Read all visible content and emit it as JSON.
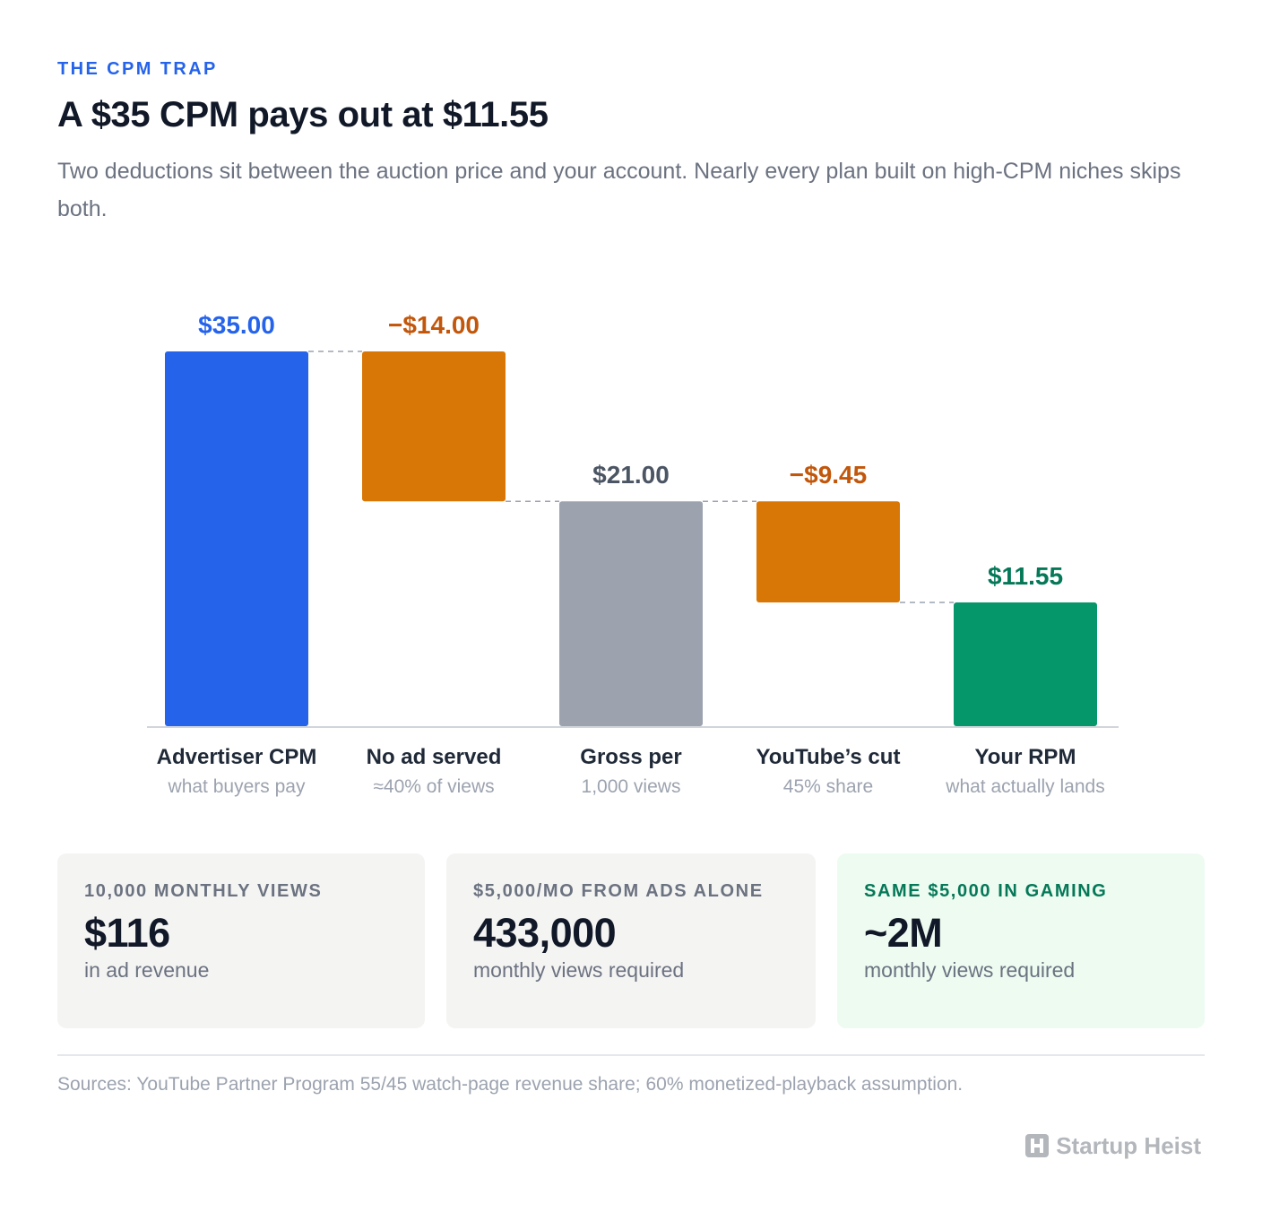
{
  "header": {
    "eyebrow": "THE CPM TRAP",
    "title": "A $35 CPM pays out at $11.55",
    "subtitle": "Two deductions sit between the auction price and your account. Nearly every plan built on high-CPM niches skips both."
  },
  "colors": {
    "accent": "#2563eb",
    "deduction": "#d97706",
    "deduction_label": "#c2570c",
    "gross": "#9ca3af",
    "gross_label": "#4b5563",
    "result": "#059669",
    "result_label": "#047857"
  },
  "chart_data": {
    "type": "bar",
    "subtype": "waterfall",
    "ylim": [
      0,
      35
    ],
    "grid": false,
    "bars": [
      {
        "label": "Advertiser CPM",
        "sublabel": "what buyers pay",
        "start": 0,
        "end": 35.0,
        "value_label": "$35.00",
        "kind": "total-start"
      },
      {
        "label": "No ad served",
        "sublabel": "≈40% of views",
        "start": 21.0,
        "end": 35.0,
        "value_label": "−$14.00",
        "kind": "deduction"
      },
      {
        "label": "Gross per",
        "sublabel": "1,000 views",
        "start": 0,
        "end": 21.0,
        "value_label": "$21.00",
        "kind": "subtotal"
      },
      {
        "label": "YouTube’s cut",
        "sublabel": "45% share",
        "start": 11.55,
        "end": 21.0,
        "value_label": "−$9.45",
        "kind": "deduction"
      },
      {
        "label": "Your RPM",
        "sublabel": "what actually lands",
        "start": 0,
        "end": 11.55,
        "value_label": "$11.55",
        "kind": "result"
      }
    ]
  },
  "stats": [
    {
      "label": "10,000 MONTHLY VIEWS",
      "value": "$116",
      "caption": "in ad revenue"
    },
    {
      "label": "$5,000/MO FROM ADS ALONE",
      "value": "433,000",
      "caption": "monthly views required"
    },
    {
      "label": "SAME $5,000 IN GAMING",
      "value": "~2M",
      "caption": "monthly views required"
    }
  ],
  "footer": {
    "sources": "Sources: YouTube Partner Program 55/45 watch-page revenue share; 60% monetized-playback assumption.",
    "brand": "Startup Heist",
    "brand_icon": "h-logo-icon"
  }
}
